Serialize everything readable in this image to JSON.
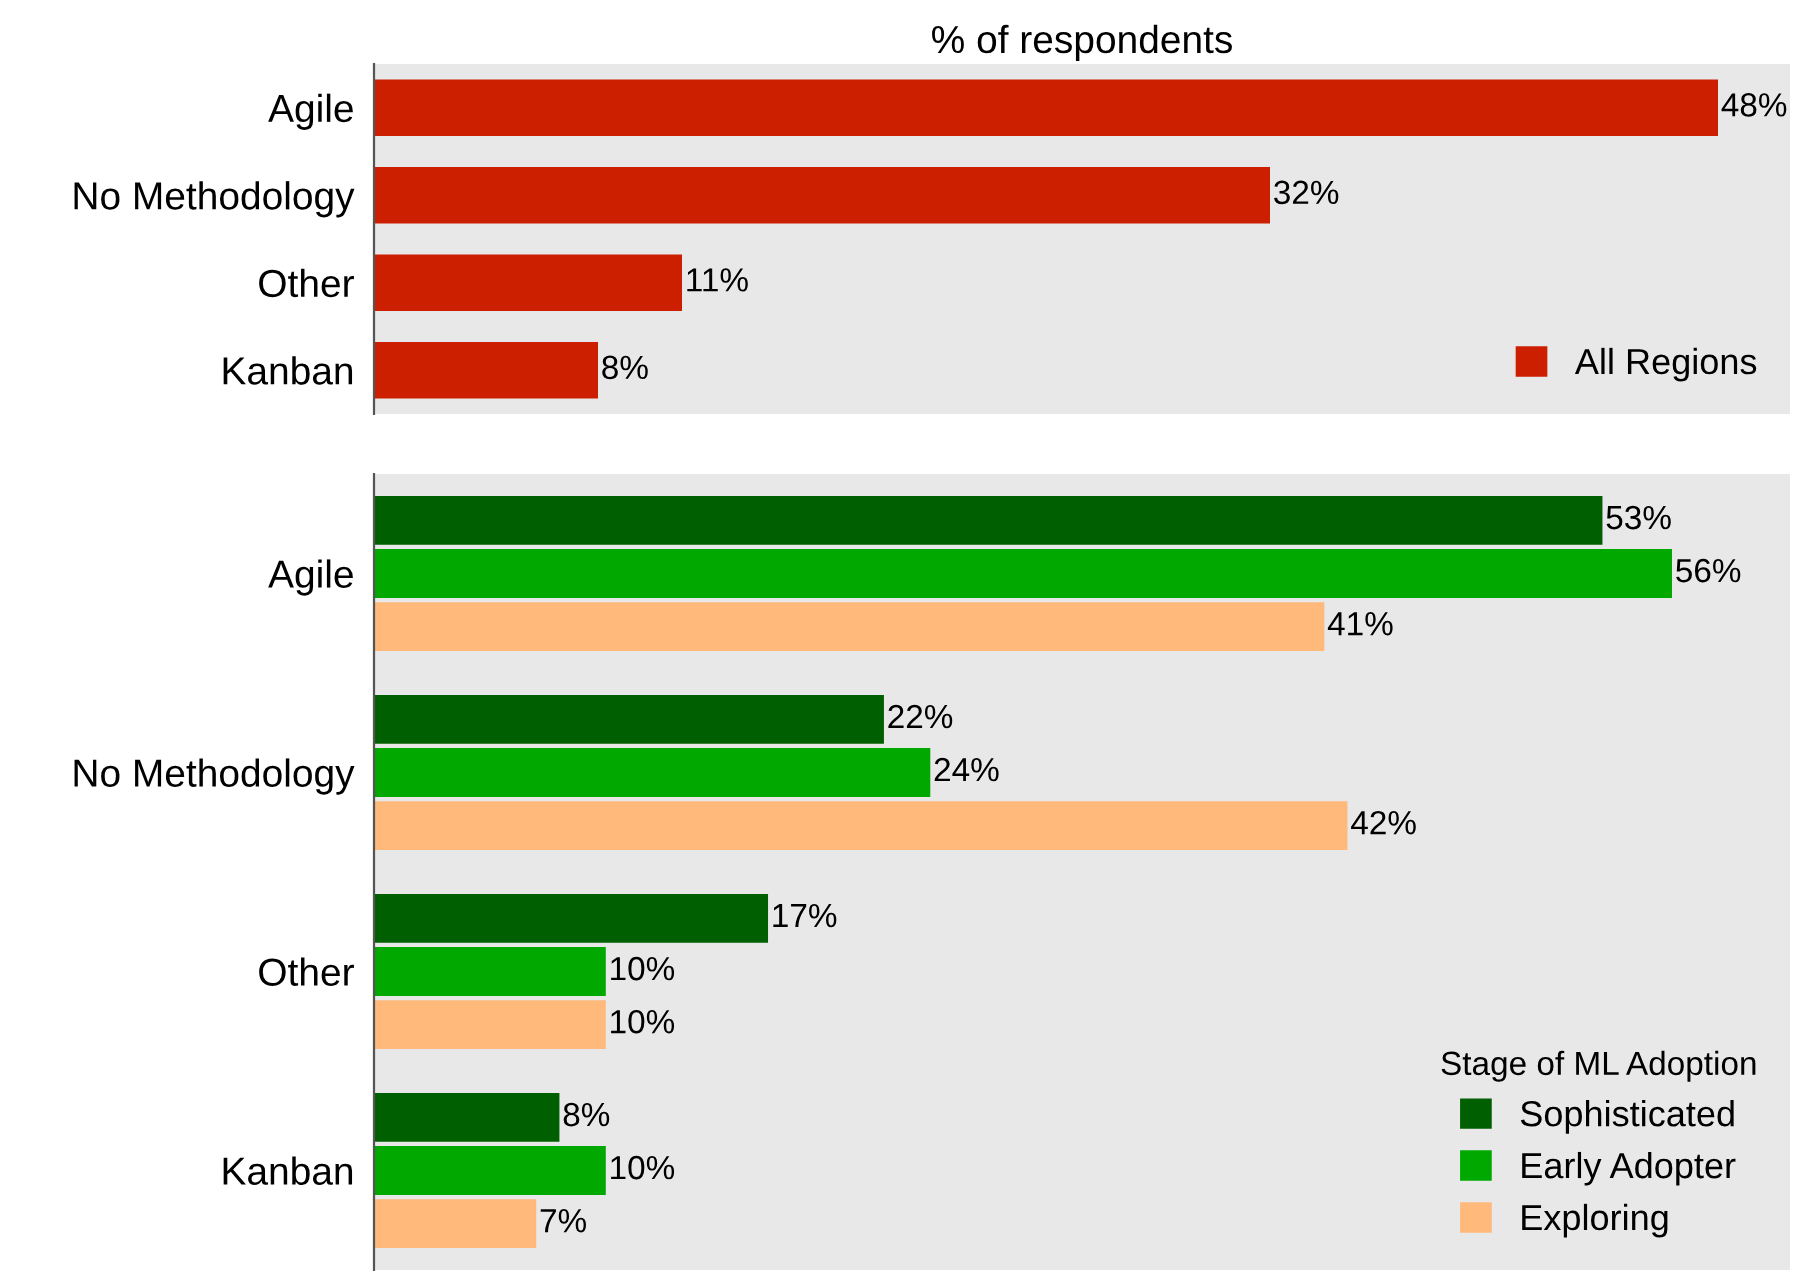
{
  "chart_data": [
    {
      "type": "bar",
      "orientation": "horizontal",
      "title": "% of respondents",
      "categories": [
        "Agile",
        "No Methodology",
        "Other",
        "Kanban"
      ],
      "series": [
        {
          "name": "All Regions",
          "color": "#cc1f00",
          "values": [
            48,
            32,
            11,
            8
          ],
          "value_labels": [
            "48%",
            "32%",
            "11%",
            "8%"
          ]
        }
      ],
      "legend": "bottom right",
      "tick_labels": "y",
      "grid": false
    },
    {
      "type": "bar",
      "orientation": "horizontal",
      "categories": [
        "Agile",
        "No Methodology",
        "Other",
        "Kanban"
      ],
      "legend_title": "Stage of ML Adoption",
      "series": [
        {
          "name": "Sophisticated",
          "color": "#005f00",
          "values": [
            53,
            22,
            17,
            8
          ],
          "value_labels": [
            "53%",
            "22%",
            "17%",
            "8%"
          ]
        },
        {
          "name": "Early Adopter",
          "color": "#00a800",
          "values": [
            56,
            24,
            10,
            10
          ],
          "value_labels": [
            "56%",
            "24%",
            "10%",
            "10%"
          ]
        },
        {
          "name": "Exploring",
          "color": "#ffb97a",
          "values": [
            41,
            42,
            10,
            7
          ],
          "value_labels": [
            "41%",
            "42%",
            "10%",
            "7%"
          ]
        }
      ],
      "legend": "bottom right",
      "tick_labels": "y",
      "grid": false
    }
  ]
}
